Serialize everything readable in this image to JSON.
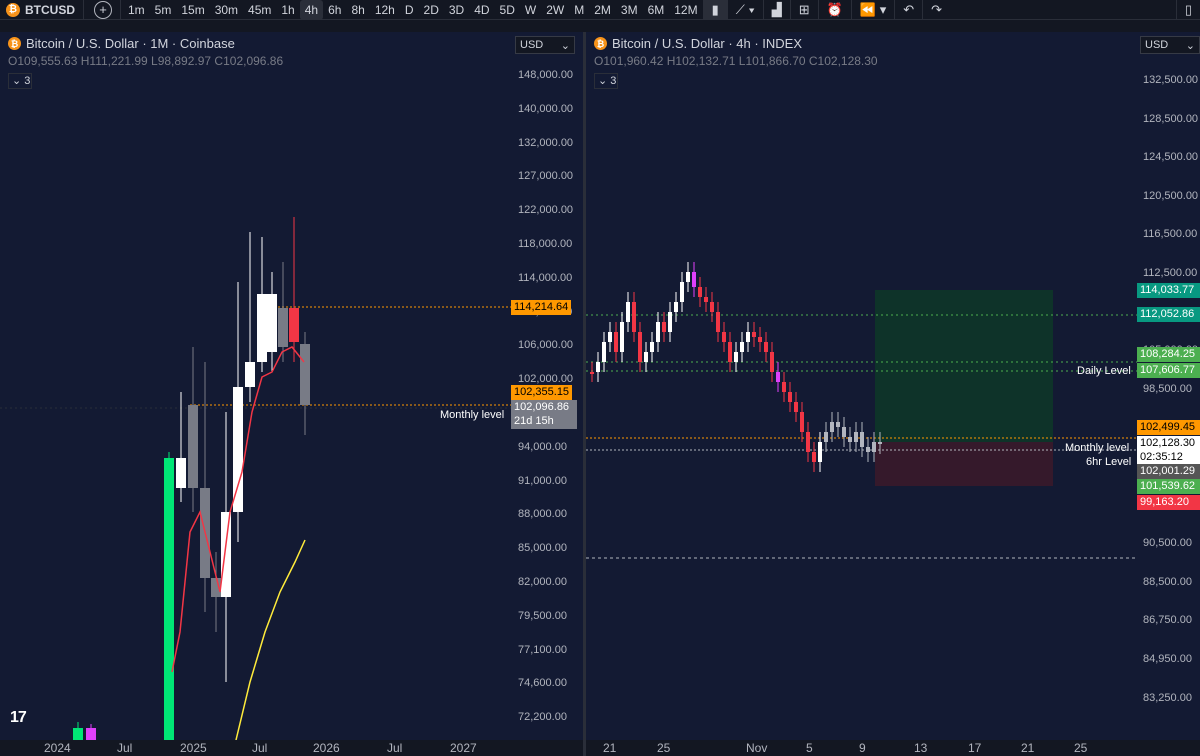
{
  "toolbar": {
    "symbol": "BTCUSD",
    "timeframes": [
      "1m",
      "5m",
      "15m",
      "30m",
      "45m",
      "1h",
      "4h",
      "6h",
      "8h",
      "12h",
      "D",
      "2D",
      "3D",
      "4D",
      "5D",
      "W",
      "2W",
      "M",
      "2M",
      "3M",
      "6M",
      "12M"
    ],
    "active_timeframe": "4h"
  },
  "left": {
    "title": "Bitcoin / U.S. Dollar · 1M · Coinbase",
    "ohlc": {
      "o": "109,555.63",
      "h": "111,221.99",
      "l": "98,892.97",
      "c": "102,096.86"
    },
    "indicators_count": "3",
    "currency": "USD",
    "price_ticks": [
      "148,000.00",
      "140,000.00",
      "132,000.00",
      "127,000.00",
      "122,000.00",
      "118,000.00",
      "114,000.00",
      "110,000.00",
      "106,000.00",
      "102,000.00",
      "98,000.00",
      "94,000.00",
      "91,000.00",
      "88,000.00",
      "85,000.00",
      "82,000.00",
      "79,500.00",
      "77,100.00",
      "74,600.00",
      "72,200.00"
    ],
    "level_tag_1": "114,214.64",
    "level_tag_2": "102,355.15",
    "price_tag": "102,096.86",
    "countdown": "21d 15h",
    "line_label": "Monthly level",
    "time_ticks": [
      "2024",
      "Jul",
      "2025",
      "Jul",
      "2026",
      "Jul",
      "2027"
    ]
  },
  "right": {
    "title": "Bitcoin / U.S. Dollar · 4h · INDEX",
    "ohlc": {
      "o": "101,960.42",
      "h": "102,132.71",
      "l": "101,866.70",
      "c": "102,128.30"
    },
    "indicators_count": "3",
    "currency": "USD",
    "price_ticks": [
      "132,500.00",
      "128,500.00",
      "124,500.00",
      "120,500.00",
      "116,500.00",
      "112,500.00",
      "108,500.00",
      "105,000.00",
      "98,500.00",
      "96,500.00",
      "94,500.00",
      "92,500.00",
      "90,500.00",
      "88,500.00",
      "86,750.00",
      "84,950.00",
      "83,250.00"
    ],
    "tags": {
      "t1": "114,033.77",
      "t2": "112,052.86",
      "t3": "108,284.25",
      "t4": "107,606.77",
      "t5": "102,499.45",
      "t6": "102,128.30",
      "t6b": "02:35:12",
      "t7": "102,001.29",
      "t8": "101,539.62",
      "t9": "99,163.20"
    },
    "line_labels": {
      "daily": "Daily Level",
      "monthly": "Monthly level",
      "sixhr": "6hr Level"
    },
    "time_ticks": [
      "21",
      "25",
      "Nov",
      "5",
      "9",
      "13",
      "17",
      "21",
      "25"
    ]
  },
  "colors": {
    "up": "#ffffff",
    "down_red": "#f23645",
    "gray": "#787b86",
    "green": "#22ab94",
    "orange": "#ff9800"
  }
}
